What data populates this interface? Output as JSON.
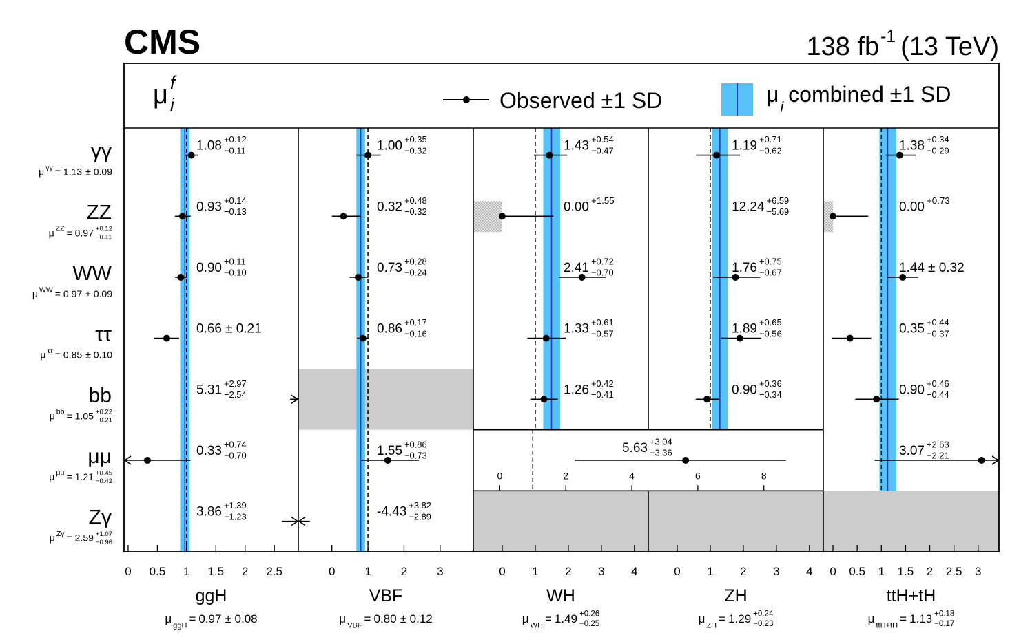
{
  "chart_data": {
    "type": "forest",
    "title": "CMS",
    "luminosity": "138 fb",
    "luminosity_exponent": "-1",
    "energy": "(13 TeV)",
    "symbols": {
      "mu": "μ",
      "equals": "=",
      "sub_i": "i",
      "sup_f": "f"
    },
    "legend": [
      {
        "name": "Observed ±1 SD",
        "color": "#000000"
      },
      {
        "name_symbol": "μ",
        "name_subscript": "i",
        "name": "combined ±1 SD",
        "color": "#56c2f6",
        "line_color": "#1f3dc8"
      }
    ],
    "reference_line": 1,
    "decays": [
      {
        "label": "γγ",
        "value": 1.13,
        "value_label": "1.13",
        "err_up": 0.09,
        "err_up_label": "± 0.09",
        "err_down": 0.09,
        "err_down_label": null
      },
      {
        "label": "ZZ",
        "value": 0.97,
        "value_label": "0.97",
        "err_up": 0.12,
        "err_up_label": "+0.12",
        "err_down": 0.11,
        "err_down_label": "−0.11"
      },
      {
        "label": "WW",
        "value": 0.97,
        "value_label": "0.97",
        "err_up": 0.09,
        "err_up_label": "± 0.09",
        "err_down": 0.09,
        "err_down_label": null
      },
      {
        "label": "ττ",
        "value": 0.85,
        "value_label": "0.85",
        "err_up": 0.1,
        "err_up_label": "± 0.10",
        "err_down": 0.1,
        "err_down_label": null
      },
      {
        "label": "bb",
        "value": 1.05,
        "value_label": "1.05",
        "err_up": 0.22,
        "err_up_label": "+0.22",
        "err_down": 0.21,
        "err_down_label": "−0.21"
      },
      {
        "label": "μμ",
        "value": 1.21,
        "value_label": "1.21",
        "err_up": 0.45,
        "err_up_label": "+0.45",
        "err_down": 0.42,
        "err_down_label": "−0.42"
      },
      {
        "label": "Zγ",
        "value": 2.59,
        "value_label": "2.59",
        "err_up": 1.07,
        "err_up_label": "+1.07",
        "err_down": 0.96,
        "err_down_label": "−0.96"
      }
    ],
    "panels": [
      {
        "name": "ggH",
        "xlim": [
          -0.07,
          2.91
        ],
        "xticks": [
          0,
          0.5,
          1,
          1.5,
          2,
          2.5
        ],
        "combined": {
          "value": 0.97,
          "value_label": "0.97",
          "err_up": 0.08,
          "err_up_label": "± 0.08",
          "err_down": 0.08,
          "err_down_label": null
        },
        "values": [
          1.08,
          0.93,
          0.9,
          0.66,
          5.31,
          0.33,
          3.86
        ],
        "value_labels": [
          "1.08",
          "0.93",
          "0.90",
          "0.66",
          "5.31",
          "0.33",
          "3.86"
        ],
        "err_up": [
          0.12,
          0.14,
          0.11,
          0.21,
          2.97,
          0.74,
          1.39
        ],
        "err_up_labels": [
          "+0.12",
          "+0.14",
          "+0.11",
          "± 0.21",
          "+2.97",
          "+0.74",
          "+1.39"
        ],
        "err_down": [
          0.11,
          0.13,
          0.1,
          0.21,
          2.54,
          0.7,
          1.23
        ],
        "err_down_labels": [
          "−0.11",
          "−0.13",
          "−0.10",
          null,
          "−2.54",
          "−0.70",
          "−1.23"
        ]
      },
      {
        "name": "VBF",
        "xlim": [
          -0.93,
          3.92
        ],
        "xticks": [
          0,
          1,
          2,
          3
        ],
        "combined": {
          "value": 0.8,
          "value_label": "0.80",
          "err_up": 0.12,
          "err_up_label": "± 0.12",
          "err_down": 0.12,
          "err_down_label": null
        },
        "values": [
          1.0,
          0.32,
          0.73,
          0.86,
          null,
          1.55,
          -4.43
        ],
        "value_labels": [
          "1.00",
          "0.32",
          "0.73",
          "0.86",
          null,
          "1.55",
          "-4.43"
        ],
        "err_up": [
          0.35,
          0.48,
          0.28,
          0.17,
          null,
          0.86,
          3.82
        ],
        "err_up_labels": [
          "+0.35",
          "+0.48",
          "+0.28",
          "+0.17",
          null,
          "+0.86",
          "+3.82"
        ],
        "err_down": [
          0.32,
          0.32,
          0.24,
          0.16,
          null,
          0.73,
          2.89
        ],
        "err_down_labels": [
          "−0.32",
          "−0.32",
          "−0.24",
          "−0.16",
          null,
          "−0.73",
          "−2.89"
        ]
      },
      {
        "name": "WH",
        "xlim": [
          -0.875,
          4.42
        ],
        "xticks": [
          0,
          1,
          2,
          3,
          4
        ],
        "combined": {
          "value": 1.49,
          "value_label": "1.49",
          "err_up": 0.26,
          "err_up_label": "+0.26",
          "err_down": 0.25,
          "err_down_label": "−0.25"
        },
        "values": [
          1.43,
          0.0,
          2.41,
          1.33,
          1.26,
          null,
          null
        ],
        "value_labels": [
          "1.43",
          "0.00",
          "2.41",
          "1.33",
          "1.26",
          null,
          null
        ],
        "err_up": [
          0.54,
          1.55,
          0.72,
          0.61,
          0.42,
          null,
          null
        ],
        "err_up_labels": [
          "+0.54",
          "+1.55",
          "+0.72",
          "+0.61",
          "+0.42",
          null,
          null
        ],
        "err_down": [
          0.47,
          null,
          0.7,
          0.57,
          0.41,
          null,
          null
        ],
        "err_down_labels": [
          "−0.47",
          null,
          "−0.70",
          "−0.57",
          "−0.41",
          null,
          null
        ]
      },
      {
        "name": "ZH",
        "xlim": [
          -0.875,
          4.42
        ],
        "xticks": [
          0,
          1,
          2,
          3,
          4
        ],
        "combined": {
          "value": 1.29,
          "value_label": "1.29",
          "err_up": 0.24,
          "err_up_label": "+0.24",
          "err_down": 0.23,
          "err_down_label": "−0.23"
        },
        "values": [
          1.19,
          12.24,
          1.76,
          1.89,
          0.9,
          null,
          null
        ],
        "value_labels": [
          "1.19",
          "12.24",
          "1.76",
          "1.89",
          "0.90",
          null,
          null
        ],
        "err_up": [
          0.71,
          6.59,
          0.75,
          0.65,
          0.36,
          null,
          null
        ],
        "err_up_labels": [
          "+0.71",
          "+6.59",
          "+0.75",
          "+0.65",
          "+0.36",
          null,
          null
        ],
        "err_down": [
          0.62,
          5.69,
          0.67,
          0.56,
          0.34,
          null,
          null
        ],
        "err_down_labels": [
          "−0.62",
          "−5.69",
          "−0.67",
          "−0.56",
          "−0.34",
          null,
          null
        ]
      },
      {
        "name": "ttH+tH",
        "xlim": [
          -0.2,
          3.43
        ],
        "xticks": [
          0,
          0.5,
          1,
          1.5,
          2,
          2.5,
          3
        ],
        "combined": {
          "value": 1.13,
          "value_label": "1.13",
          "err_up": 0.18,
          "err_up_label": "+0.18",
          "err_down": 0.17,
          "err_down_label": "−0.17"
        },
        "values": [
          1.38,
          0.0,
          1.44,
          0.35,
          0.9,
          3.07,
          null
        ],
        "value_labels": [
          "1.38",
          "0.00",
          "1.44",
          "0.35",
          "0.90",
          "3.07",
          null
        ],
        "err_up": [
          0.34,
          0.73,
          0.32,
          0.44,
          0.46,
          2.63,
          null
        ],
        "err_up_labels": [
          "+0.34",
          "+0.73",
          "± 0.32",
          "+0.44",
          "+0.46",
          "+2.63",
          null
        ],
        "err_down": [
          0.29,
          null,
          0.32,
          0.37,
          0.44,
          2.21,
          null
        ],
        "err_down_labels": [
          "−0.29",
          null,
          null,
          "−0.37",
          "−0.44",
          "−2.21",
          null
        ]
      }
    ],
    "vh_mumu": {
      "value": 5.63,
      "value_label": "5.63",
      "err_up": 3.04,
      "err_up_label": "+3.04",
      "err_down": 3.36,
      "err_down_label": "−3.36",
      "xlim": [
        -0.8,
        9.8
      ],
      "xticks": [
        0,
        2,
        4,
        6,
        8
      ]
    }
  }
}
